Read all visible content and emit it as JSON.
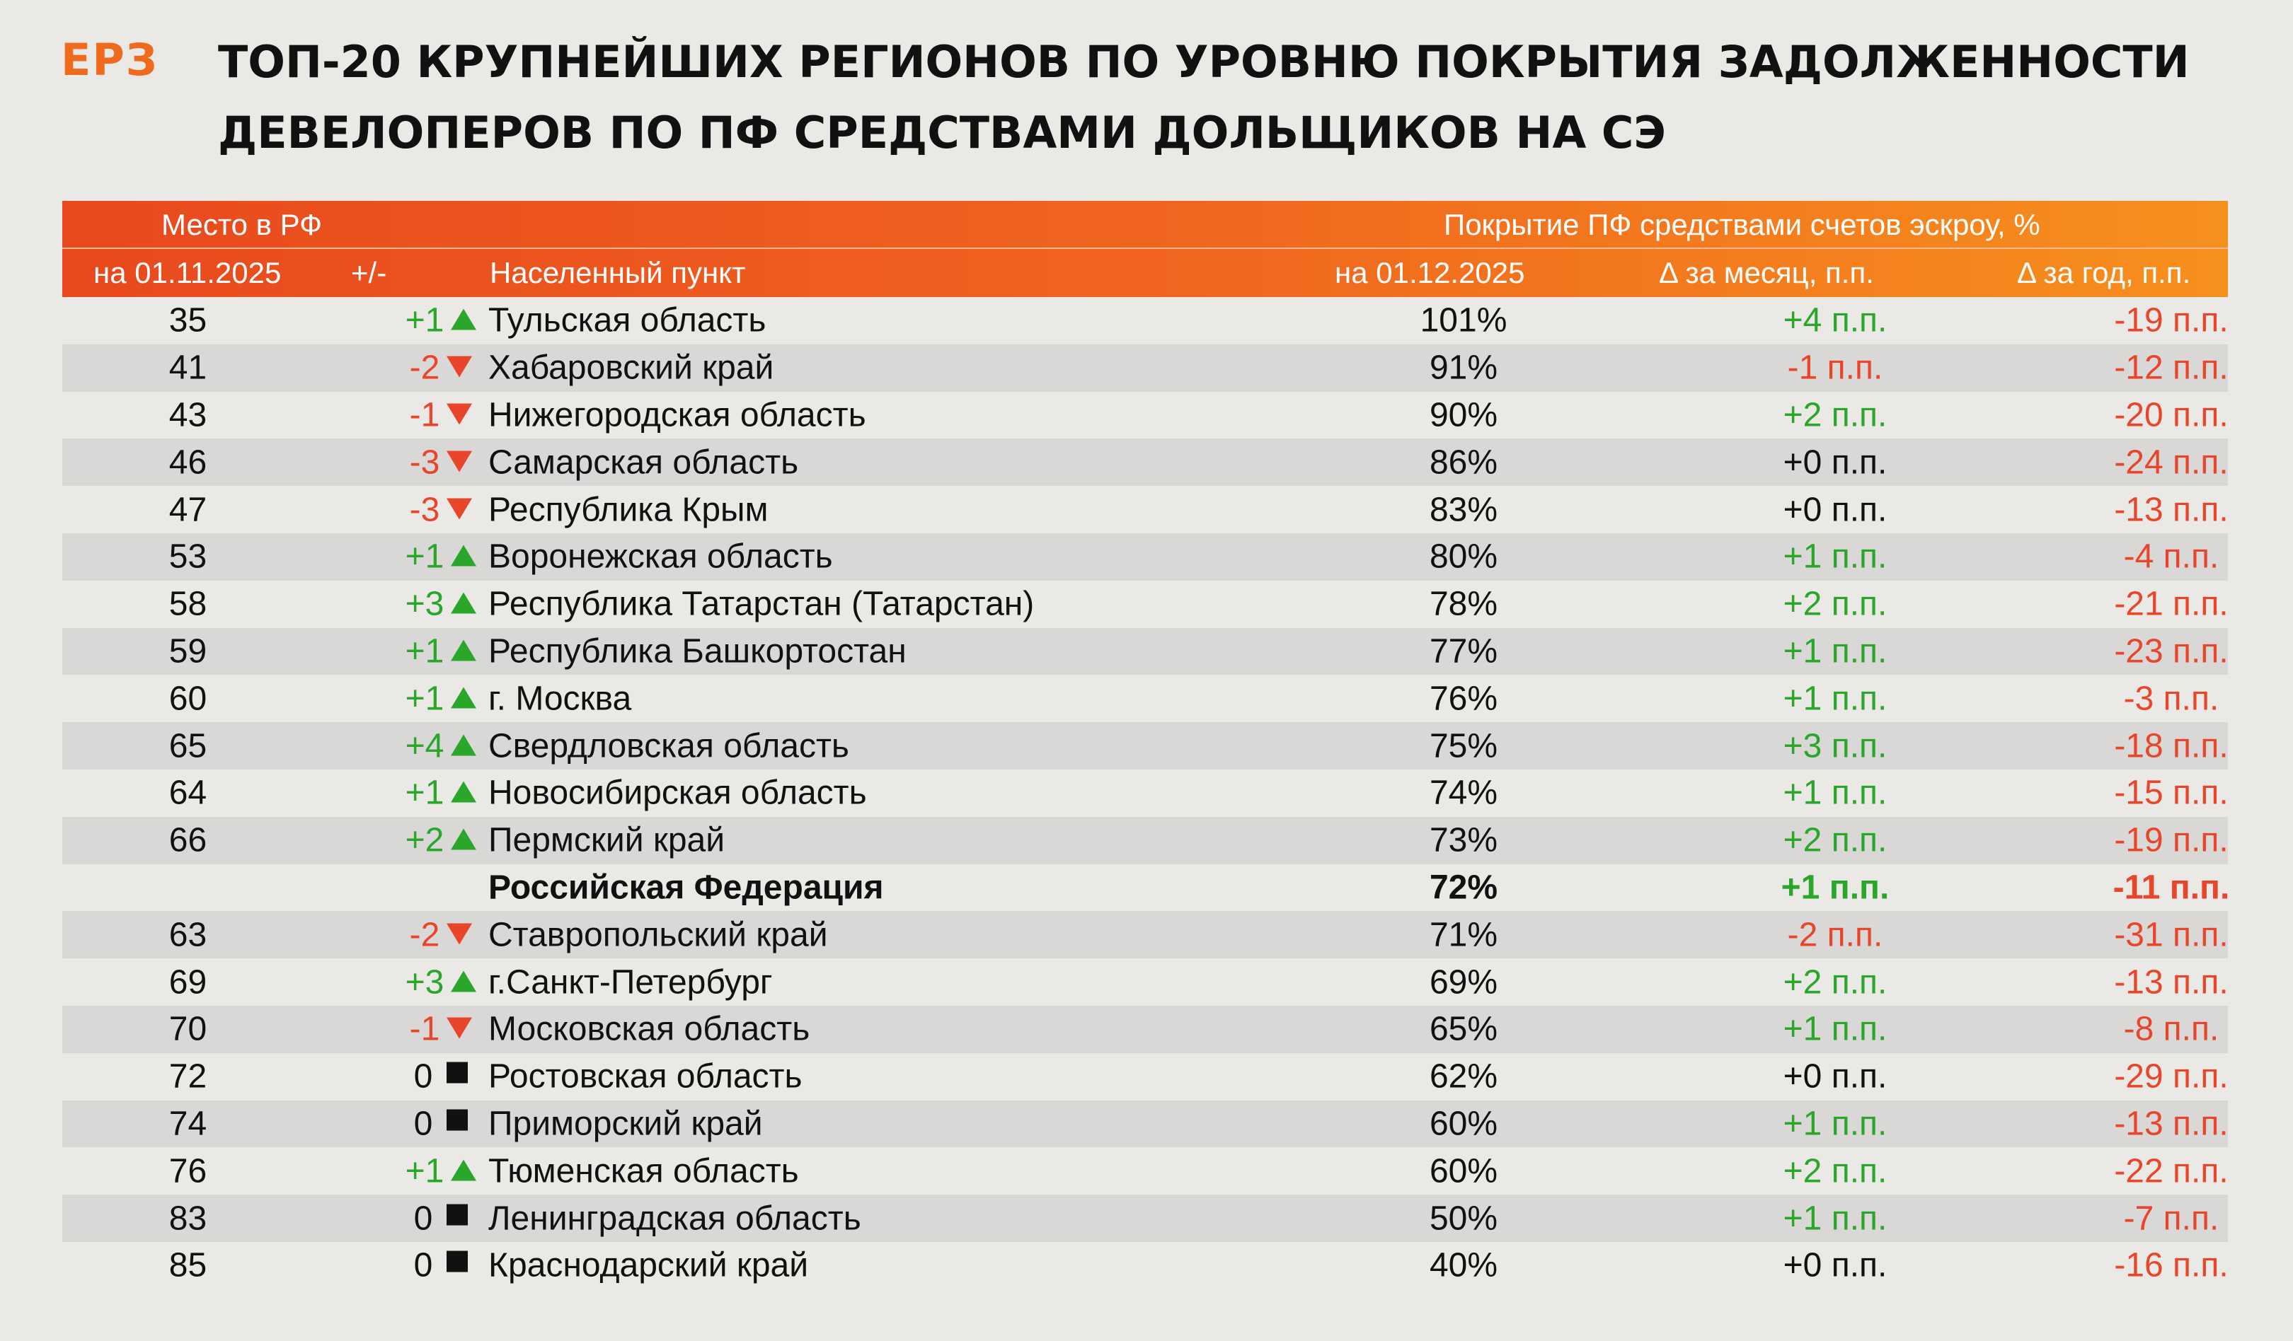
{
  "logo": "ЕРЗ",
  "title": "ТОП-20 КРУПНЕЙШИХ РЕГИОНОВ ПО УРОВНЮ ПОКРЫТИЯ ЗАДОЛЖЕННОСТИ ДЕВЕЛОПЕРОВ ПО ПФ СРЕДСТВАМИ ДОЛЬЩИКОВ НА СЭ",
  "header": {
    "place_group": "Место в РФ",
    "coverage_group": "Покрытие ПФ средствами счетов эскроу, %",
    "place_date": "на 01.11.2025",
    "change": "+/-",
    "region": "Населенный пункт",
    "value_date": "на 01.12.2025",
    "delta_month": "Δ за месяц, п.п.",
    "delta_year": "Δ за год, п.п."
  },
  "colors": {
    "accent_orange": "#f06a1e",
    "up_green": "#2aa62a",
    "down_red": "#e8452a",
    "row_alt": "#d9d8d6",
    "background": "#ebe9e5"
  },
  "rows": [
    {
      "place": "35",
      "change": "+1",
      "trend": "up",
      "region": "Тульская область",
      "value": "101%",
      "dm": "+4 п.п.",
      "dm_trend": "up",
      "dy": "-19 п.п."
    },
    {
      "place": "41",
      "change": "-2",
      "trend": "down",
      "region": "Хабаровский край",
      "value": "91%",
      "dm": "-1 п.п.",
      "dm_trend": "down",
      "dy": "-12 п.п."
    },
    {
      "place": "43",
      "change": "-1",
      "trend": "down",
      "region": "Нижегородская область",
      "value": "90%",
      "dm": "+2 п.п.",
      "dm_trend": "up",
      "dy": "-20 п.п."
    },
    {
      "place": "46",
      "change": "-3",
      "trend": "down",
      "region": "Самарская область",
      "value": "86%",
      "dm": "+0 п.п.",
      "dm_trend": "flat",
      "dy": "-24 п.п."
    },
    {
      "place": "47",
      "change": "-3",
      "trend": "down",
      "region": "Республика Крым",
      "value": "83%",
      "dm": "+0 п.п.",
      "dm_trend": "flat",
      "dy": "-13 п.п."
    },
    {
      "place": "53",
      "change": "+1",
      "trend": "up",
      "region": "Воронежская область",
      "value": "80%",
      "dm": "+1 п.п.",
      "dm_trend": "up",
      "dy": "-4 п.п."
    },
    {
      "place": "58",
      "change": "+3",
      "trend": "up",
      "region": "Республика Татарстан (Татарстан)",
      "value": "78%",
      "dm": "+2 п.п.",
      "dm_trend": "up",
      "dy": "-21 п.п."
    },
    {
      "place": "59",
      "change": "+1",
      "trend": "up",
      "region": "Республика Башкортостан",
      "value": "77%",
      "dm": "+1 п.п.",
      "dm_trend": "up",
      "dy": "-23 п.п."
    },
    {
      "place": "60",
      "change": "+1",
      "trend": "up",
      "region": "г. Москва",
      "value": "76%",
      "dm": "+1 п.п.",
      "dm_trend": "up",
      "dy": "-3 п.п."
    },
    {
      "place": "65",
      "change": "+4",
      "trend": "up",
      "region": "Свердловская область",
      "value": "75%",
      "dm": "+3 п.п.",
      "dm_trend": "up",
      "dy": "-18 п.п."
    },
    {
      "place": "64",
      "change": "+1",
      "trend": "up",
      "region": "Новосибирская область",
      "value": "74%",
      "dm": "+1 п.п.",
      "dm_trend": "up",
      "dy": "-15 п.п."
    },
    {
      "place": "66",
      "change": "+2",
      "trend": "up",
      "region": "Пермский край",
      "value": "73%",
      "dm": "+2 п.п.",
      "dm_trend": "up",
      "dy": "-19 п.п."
    },
    {
      "place": "",
      "change": "",
      "trend": "none",
      "region": "Российская Федерация",
      "value": "72%",
      "dm": "+1 п.п.",
      "dm_trend": "up",
      "dy": "-11 п.п.",
      "bold": true
    },
    {
      "place": "63",
      "change": "-2",
      "trend": "down",
      "region": "Ставропольский край",
      "value": "71%",
      "dm": "-2 п.п.",
      "dm_trend": "down",
      "dy": "-31 п.п."
    },
    {
      "place": "69",
      "change": "+3",
      "trend": "up",
      "region": "г.Санкт-Петербург",
      "value": "69%",
      "dm": "+2 п.п.",
      "dm_trend": "up",
      "dy": "-13 п.п."
    },
    {
      "place": "70",
      "change": "-1",
      "trend": "down",
      "region": "Московская область",
      "value": "65%",
      "dm": "+1 п.п.",
      "dm_trend": "up",
      "dy": "-8 п.п."
    },
    {
      "place": "72",
      "change": "0",
      "trend": "flat",
      "region": "Ростовская область",
      "value": "62%",
      "dm": "+0 п.п.",
      "dm_trend": "flat",
      "dy": "-29 п.п."
    },
    {
      "place": "74",
      "change": "0",
      "trend": "flat",
      "region": "Приморский край",
      "value": "60%",
      "dm": "+1 п.п.",
      "dm_trend": "up",
      "dy": "-13 п.п."
    },
    {
      "place": "76",
      "change": "+1",
      "trend": "up",
      "region": "Тюменская область",
      "value": "60%",
      "dm": "+2 п.п.",
      "dm_trend": "up",
      "dy": "-22 п.п."
    },
    {
      "place": "83",
      "change": "0",
      "trend": "flat",
      "region": "Ленинградская область",
      "value": "50%",
      "dm": "+1 п.п.",
      "dm_trend": "up",
      "dy": "-7 п.п."
    },
    {
      "place": "85",
      "change": "0",
      "trend": "flat",
      "region": "Краснодарский край",
      "value": "40%",
      "dm": "+0 п.п.",
      "dm_trend": "flat",
      "dy": "-16 п.п."
    }
  ]
}
